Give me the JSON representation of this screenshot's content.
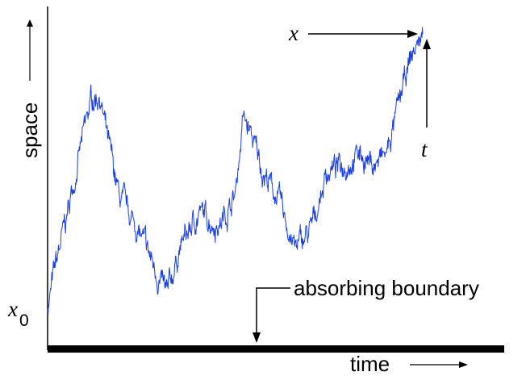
{
  "labels": {
    "y_axis": "space",
    "x_axis": "time",
    "start": "x",
    "start_subscript": "0",
    "end_position": "x",
    "end_time": "t",
    "boundary": "absorbing boundary"
  },
  "colors": {
    "path": "#1a3ee6",
    "axes": "#000000",
    "background": "#ffffff"
  },
  "path": {
    "description_points": [
      [
        0,
        0.08
      ],
      [
        0.02,
        0.22
      ],
      [
        0.05,
        0.4
      ],
      [
        0.08,
        0.6
      ],
      [
        0.11,
        0.78
      ],
      [
        0.13,
        0.8
      ],
      [
        0.15,
        0.64
      ],
      [
        0.18,
        0.45
      ],
      [
        0.22,
        0.36
      ],
      [
        0.26,
        0.24
      ],
      [
        0.3,
        0.12
      ],
      [
        0.33,
        0.28
      ],
      [
        0.38,
        0.4
      ],
      [
        0.43,
        0.36
      ],
      [
        0.47,
        0.46
      ],
      [
        0.49,
        0.72
      ],
      [
        0.51,
        0.66
      ],
      [
        0.54,
        0.54
      ],
      [
        0.58,
        0.44
      ],
      [
        0.62,
        0.28
      ],
      [
        0.66,
        0.34
      ],
      [
        0.7,
        0.54
      ],
      [
        0.74,
        0.56
      ],
      [
        0.78,
        0.6
      ],
      [
        0.82,
        0.56
      ],
      [
        0.85,
        0.6
      ],
      [
        0.88,
        0.76
      ],
      [
        0.91,
        0.92
      ],
      [
        0.94,
        1.0
      ]
    ],
    "noise_seed": 7,
    "noise_amplitude": 0.03
  }
}
